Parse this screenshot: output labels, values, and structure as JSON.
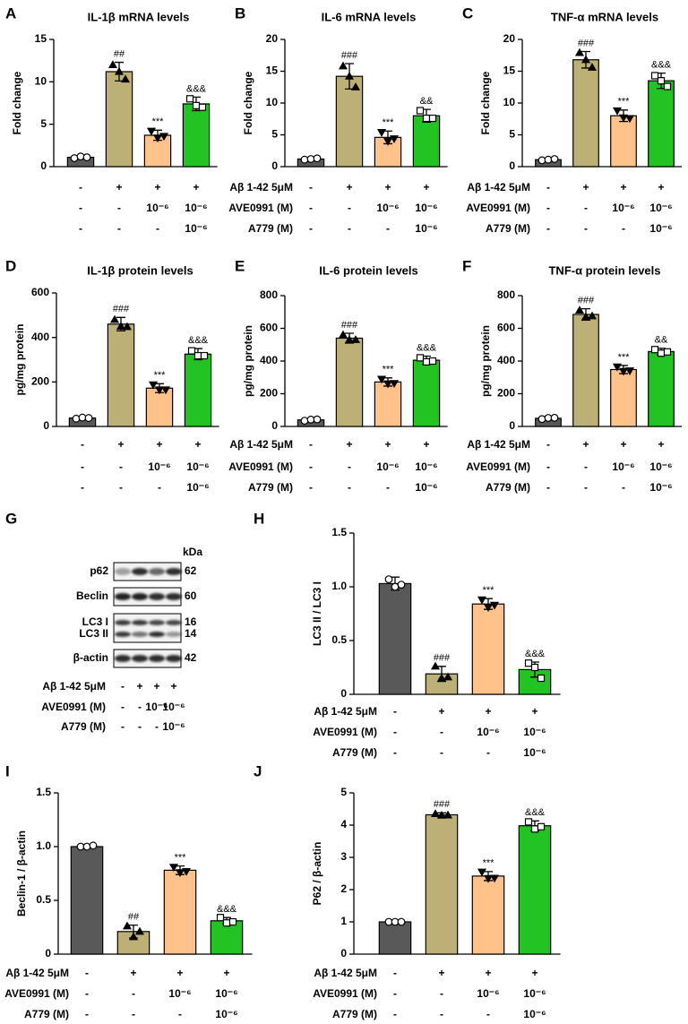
{
  "chart_data": [
    {
      "type": "bar",
      "letter": "A",
      "title": "IL-1β mRNA levels",
      "ylabel": "Fold change",
      "ylim": [
        0,
        15
      ],
      "yticks": [
        0,
        5,
        10,
        15
      ],
      "values": [
        1.1,
        11.2,
        3.7,
        7.4
      ],
      "errors": [
        0.2,
        1.1,
        0.6,
        0.8
      ],
      "points": [
        [
          1.0,
          1.2,
          1.1
        ],
        [
          12.0,
          11.2,
          10.3
        ],
        [
          4.2,
          3.4,
          3.6
        ],
        [
          8.0,
          7.2,
          7.0
        ]
      ],
      "annotations": [
        null,
        "##",
        "***",
        "&&&"
      ],
      "colors": [
        "#595959",
        "#bdb076",
        "#ffc28a",
        "#22c322"
      ],
      "markers": [
        "circle",
        "triangle-up",
        "triangle-down",
        "square"
      ],
      "treatments": [
        {
          "cells": [
            "-",
            "+",
            "+",
            "+"
          ]
        },
        {
          "cells": [
            "-",
            "-",
            "10⁻⁶",
            "10⁻⁶"
          ]
        },
        {
          "cells": [
            "-",
            "-",
            "-",
            "10⁻⁶"
          ]
        }
      ]
    },
    {
      "type": "bar",
      "letter": "B",
      "title": "IL-6 mRNA levels",
      "ylabel": "Fold change",
      "ylim": [
        0,
        20
      ],
      "yticks": [
        0,
        5,
        10,
        15,
        20
      ],
      "values": [
        1.2,
        14.2,
        4.6,
        8.0
      ],
      "errors": [
        0.2,
        2.0,
        1.0,
        1.0
      ],
      "points": [
        [
          1.1,
          1.2,
          1.3
        ],
        [
          15.8,
          14.2,
          12.5
        ],
        [
          5.4,
          4.0,
          4.4
        ],
        [
          8.8,
          7.6,
          7.6
        ]
      ],
      "annotations": [
        null,
        "###",
        "***",
        "&&"
      ],
      "colors": [
        "#595959",
        "#bdb076",
        "#ffc28a",
        "#22c322"
      ],
      "markers": [
        "circle",
        "triangle-up",
        "triangle-down",
        "square"
      ],
      "treatments": [
        {
          "label": "Aβ 1-42 5μM",
          "cells": [
            "-",
            "+",
            "+",
            "+"
          ]
        },
        {
          "label": "AVE0991 (M)",
          "cells": [
            "-",
            "-",
            "10⁻⁶",
            "10⁻⁶"
          ]
        },
        {
          "label": "A779 (M)",
          "cells": [
            "-",
            "-",
            "-",
            "10⁻⁶"
          ]
        }
      ]
    },
    {
      "type": "bar",
      "letter": "C",
      "title": "TNF-α mRNA levels",
      "ylabel": "Fold change",
      "ylim": [
        0,
        20
      ],
      "yticks": [
        0,
        5,
        10,
        15,
        20
      ],
      "values": [
        1.1,
        16.8,
        8.0,
        13.5
      ],
      "errors": [
        0.1,
        1.3,
        0.9,
        1.2
      ],
      "points": [
        [
          1.0,
          1.1,
          1.2
        ],
        [
          17.9,
          16.8,
          15.6
        ],
        [
          8.8,
          7.7,
          7.6
        ],
        [
          14.3,
          13.5,
          12.6
        ]
      ],
      "annotations": [
        null,
        "###",
        "***",
        "&&&"
      ],
      "colors": [
        "#595959",
        "#bdb076",
        "#ffc28a",
        "#22c322"
      ],
      "markers": [
        "circle",
        "triangle-up",
        "triangle-down",
        "square"
      ],
      "treatments": [
        {
          "label": "Aβ 1-42 5μM",
          "cells": [
            "-",
            "+",
            "+",
            "+"
          ]
        },
        {
          "label": "AVE0991 (M)",
          "cells": [
            "-",
            "-",
            "10⁻⁶",
            "10⁻⁶"
          ]
        },
        {
          "label": "A779 (M)",
          "cells": [
            "-",
            "-",
            "-",
            "10⁻⁶"
          ]
        }
      ]
    },
    {
      "type": "bar",
      "letter": "D",
      "title": "IL-1β protein levels",
      "ylabel": "pg/mg protein",
      "ylim": [
        0,
        600
      ],
      "yticks": [
        0,
        200,
        400,
        600
      ],
      "values": [
        38,
        460,
        172,
        325
      ],
      "errors": [
        5,
        30,
        20,
        25
      ],
      "points": [
        [
          35,
          40,
          38
        ],
        [
          480,
          450,
          448
        ],
        [
          188,
          165,
          165
        ],
        [
          340,
          318,
          318
        ]
      ],
      "annotations": [
        null,
        "###",
        "***",
        "&&&"
      ],
      "colors": [
        "#595959",
        "#bdb076",
        "#ffc28a",
        "#22c322"
      ],
      "markers": [
        "circle",
        "triangle-up",
        "triangle-down",
        "square"
      ],
      "treatments": [
        {
          "cells": [
            "-",
            "+",
            "+",
            "+"
          ]
        },
        {
          "cells": [
            "-",
            "-",
            "10⁻⁶",
            "10⁻⁶"
          ]
        },
        {
          "cells": [
            "-",
            "-",
            "-",
            "10⁻⁶"
          ]
        }
      ]
    },
    {
      "type": "bar",
      "letter": "E",
      "title": "IL-6 protein levels",
      "ylabel": "pg/mg protein",
      "ylim": [
        0,
        800
      ],
      "yticks": [
        0,
        200,
        400,
        600,
        800
      ],
      "values": [
        40,
        540,
        272,
        405
      ],
      "errors": [
        8,
        30,
        25,
        25
      ],
      "points": [
        [
          35,
          42,
          43
        ],
        [
          560,
          530,
          530
        ],
        [
          290,
          262,
          264
        ],
        [
          420,
          395,
          400
        ]
      ],
      "annotations": [
        null,
        "###",
        "***",
        "&&&"
      ],
      "colors": [
        "#595959",
        "#bdb076",
        "#ffc28a",
        "#22c322"
      ],
      "markers": [
        "circle",
        "triangle-up",
        "triangle-down",
        "square"
      ],
      "treatments": [
        {
          "label": "Aβ 1-42 5μM",
          "cells": [
            "-",
            "+",
            "+",
            "+"
          ]
        },
        {
          "label": "AVE0991 (M)",
          "cells": [
            "-",
            "-",
            "10⁻⁶",
            "10⁻⁶"
          ]
        },
        {
          "label": "A779 (M)",
          "cells": [
            "-",
            "-",
            "-",
            "10⁻⁶"
          ]
        }
      ]
    },
    {
      "type": "bar",
      "letter": "F",
      "title": "TNF-α protein levels",
      "ylabel": "pg/mg protein",
      "ylim": [
        0,
        800
      ],
      "yticks": [
        0,
        200,
        400,
        600,
        800
      ],
      "values": [
        50,
        685,
        348,
        458
      ],
      "errors": [
        10,
        35,
        25,
        20
      ],
      "points": [
        [
          45,
          52,
          53
        ],
        [
          710,
          670,
          675
        ],
        [
          365,
          338,
          341
        ],
        [
          470,
          448,
          456
        ]
      ],
      "annotations": [
        null,
        "###",
        "***",
        "&&"
      ],
      "colors": [
        "#595959",
        "#bdb076",
        "#ffc28a",
        "#22c322"
      ],
      "markers": [
        "circle",
        "triangle-up",
        "triangle-down",
        "square"
      ],
      "treatments": [
        {
          "label": "Aβ 1-42 5μM",
          "cells": [
            "-",
            "+",
            "+",
            "+"
          ]
        },
        {
          "label": "AVE0991 (M)",
          "cells": [
            "-",
            "-",
            "10⁻⁶",
            "10⁻⁶"
          ]
        },
        {
          "label": "A779 (M)",
          "cells": [
            "-",
            "-",
            "-",
            "10⁻⁶"
          ]
        }
      ]
    },
    {
      "type": "blot",
      "letter": "G",
      "unit": "kDa",
      "bands": [
        {
          "label": "p62",
          "kda": 62
        },
        {
          "label": "Beclin",
          "kda": 60
        },
        {
          "label": "LC3 I",
          "kda": 16
        },
        {
          "label": "LC3 II",
          "kda": 14
        },
        {
          "label": "β-actin",
          "kda": 42
        }
      ],
      "treatments": [
        {
          "label": "Aβ 1-42 5μM",
          "cells": [
            "-",
            "+",
            "+",
            "+"
          ]
        },
        {
          "label": "AVE0991 (M)",
          "cells": [
            "-",
            "-",
            "10⁻⁶",
            "10⁻⁶"
          ]
        },
        {
          "label": "A779 (M)",
          "cells": [
            "-",
            "-",
            "-",
            "10⁻⁶"
          ]
        }
      ]
    },
    {
      "type": "bar",
      "letter": "H",
      "ylabel": "LC3 II / LC3 I",
      "ylim": [
        0,
        1.5
      ],
      "yticks": [
        0,
        0.5,
        {
          "value": 1,
          "label": "1.0"
        },
        1.5
      ],
      "values": [
        1.03,
        0.19,
        0.84,
        0.23
      ],
      "errors": [
        0.06,
        0.07,
        0.05,
        0.07
      ],
      "points": [
        [
          1.07,
          1.0,
          1.02
        ],
        [
          0.26,
          0.15,
          0.16
        ],
        [
          0.88,
          0.81,
          0.83
        ],
        [
          0.29,
          0.25,
          0.15
        ]
      ],
      "annotations": [
        null,
        "###",
        "***",
        "&&&"
      ],
      "colors": [
        "#595959",
        "#bdb076",
        "#ffc28a",
        "#22c322"
      ],
      "markers": [
        "circle",
        "triangle-up",
        "triangle-down",
        "square"
      ],
      "treatments": [
        {
          "label": "Aβ 1-42 5μM",
          "cells": [
            "-",
            "+",
            "+",
            "+"
          ]
        },
        {
          "label": "AVE0991 (M)",
          "cells": [
            "-",
            "-",
            "10⁻⁶",
            "10⁻⁶"
          ]
        },
        {
          "label": "A779 (M)",
          "cells": [
            "-",
            "-",
            "-",
            "10⁻⁶"
          ]
        }
      ]
    },
    {
      "type": "bar",
      "letter": "I",
      "ylabel": "Beclin-1 / β-actin",
      "ylim": [
        0,
        1.5
      ],
      "yticks": [
        0,
        0.5,
        {
          "value": 1,
          "label": "1.0"
        },
        1.5
      ],
      "values": [
        1.0,
        0.21,
        0.78,
        0.31
      ],
      "errors": [
        0.01,
        0.06,
        0.04,
        0.03
      ],
      "points": [
        [
          1.0,
          1.0,
          1.01
        ],
        [
          0.26,
          0.16,
          0.21
        ],
        [
          0.81,
          0.76,
          0.77
        ],
        [
          0.34,
          0.29,
          0.3
        ]
      ],
      "annotations": [
        null,
        "##",
        "***",
        "&&&"
      ],
      "colors": [
        "#595959",
        "#bdb076",
        "#ffc28a",
        "#22c322"
      ],
      "markers": [
        "circle",
        "triangle-up",
        "triangle-down",
        "square"
      ],
      "treatments": [
        {
          "label": "Aβ 1-42 5μM",
          "cells": [
            "-",
            "+",
            "+",
            "+"
          ]
        },
        {
          "label": "AVE0991 (M)",
          "cells": [
            "-",
            "-",
            "10⁻⁶",
            "10⁻⁶"
          ]
        },
        {
          "label": "A779 (M)",
          "cells": [
            "-",
            "-",
            "-",
            "10⁻⁶"
          ]
        }
      ]
    },
    {
      "type": "bar",
      "letter": "J",
      "ylabel": "P62 / β-actin",
      "ylim": [
        0,
        5
      ],
      "yticks": [
        0,
        1,
        2,
        3,
        4,
        5
      ],
      "values": [
        1.0,
        4.32,
        2.42,
        3.98
      ],
      "errors": [
        0.02,
        0.06,
        0.14,
        0.15
      ],
      "points": [
        [
          1.0,
          1.0,
          1.0
        ],
        [
          4.35,
          4.3,
          4.31
        ],
        [
          2.55,
          2.35,
          2.36
        ],
        [
          4.1,
          3.88,
          3.95
        ]
      ],
      "annotations": [
        null,
        "###",
        "***",
        "&&&"
      ],
      "colors": [
        "#595959",
        "#bdb076",
        "#ffc28a",
        "#22c322"
      ],
      "markers": [
        "circle",
        "triangle-up",
        "triangle-down",
        "square"
      ],
      "treatments": [
        {
          "label": "Aβ 1-42 5μM",
          "cells": [
            "-",
            "+",
            "+",
            "+"
          ]
        },
        {
          "label": "AVE0991 (M)",
          "cells": [
            "-",
            "-",
            "10⁻⁶",
            "10⁻⁶"
          ]
        },
        {
          "label": "A779 (M)",
          "cells": [
            "-",
            "-",
            "-",
            "10⁻⁶"
          ]
        }
      ]
    }
  ]
}
